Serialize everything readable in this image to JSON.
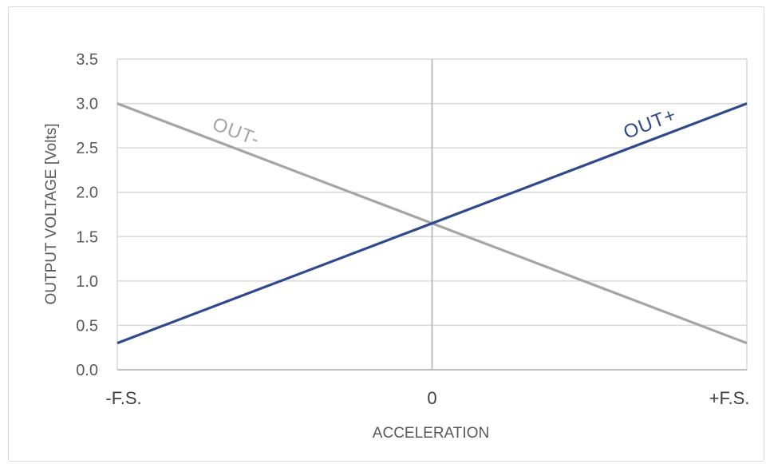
{
  "chart_data": {
    "type": "line",
    "xlabel": "ACCELERATION",
    "ylabel": "OUTPUT VOLTAGE [Volts]",
    "x_ticks": [
      "-F.S.",
      "0",
      "+F.S."
    ],
    "x": [
      -1,
      0,
      1
    ],
    "ylim": [
      0,
      3.5
    ],
    "y_ticks": [
      "0.0",
      "0.5",
      "1.0",
      "1.5",
      "2.0",
      "2.5",
      "3.0",
      "3.5"
    ],
    "grid": true,
    "series": [
      {
        "name": "OUT+",
        "values": [
          0.3,
          1.65,
          3.0
        ],
        "color": "#2e4a8c"
      },
      {
        "name": "OUT-",
        "values": [
          3.0,
          1.65,
          0.3
        ],
        "color": "#a5a5a5"
      }
    ]
  }
}
